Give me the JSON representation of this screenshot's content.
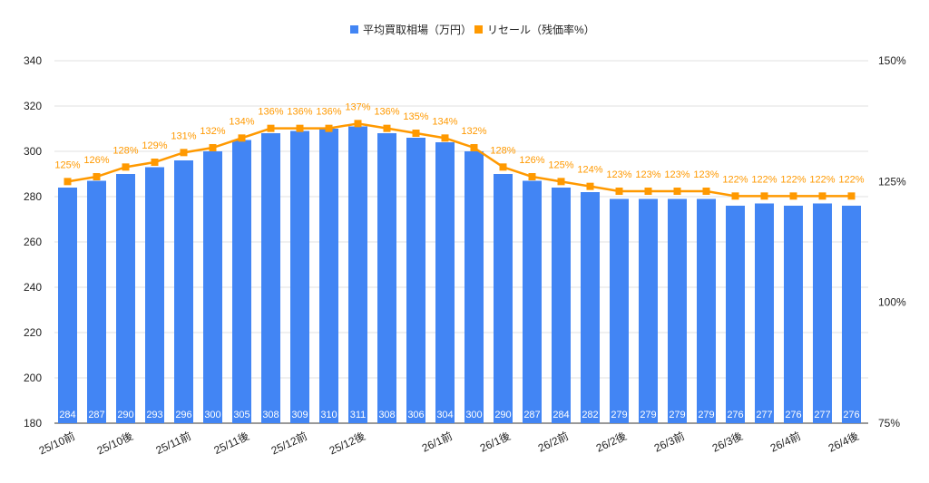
{
  "chart_data": {
    "type": "bar+line",
    "title": "",
    "legend": {
      "placement": "top",
      "items": [
        "平均買取相場（万円）",
        "リセール（残価率%）"
      ]
    },
    "colors": {
      "bars": "#4285F4",
      "line": "#FF9900",
      "grid": "#E0E0E0",
      "axis_text": "#222222"
    },
    "categories": [
      "25/10前",
      "",
      "25/10後",
      "",
      "25/11前",
      "",
      "25/11後",
      "",
      "25/12前",
      "",
      "25/12後",
      "",
      "",
      "26/1前",
      "",
      "26/1後",
      "",
      "26/2前",
      "",
      "26/2後",
      "",
      "26/3前",
      "",
      "26/3後",
      "",
      "26/4前",
      "",
      "26/4後"
    ],
    "series": [
      {
        "name": "平均買取相場（万円）",
        "type": "bar",
        "axis": "left",
        "values": [
          284,
          287,
          290,
          293,
          296,
          300,
          305,
          308,
          309,
          310,
          311,
          308,
          306,
          304,
          300,
          290,
          287,
          284,
          282,
          279,
          279,
          279,
          279,
          276,
          277,
          276,
          277,
          276
        ]
      },
      {
        "name": "リセール（残価率%）",
        "type": "line",
        "axis": "right",
        "values": [
          125,
          126,
          128,
          129,
          131,
          132,
          134,
          136,
          136,
          136,
          137,
          136,
          135,
          134,
          132,
          128,
          126,
          125,
          124,
          123,
          123,
          123,
          123,
          122,
          122,
          122,
          122,
          122
        ]
      }
    ],
    "left_axis": {
      "ylim": [
        180,
        340
      ],
      "ticks": [
        "180",
        "200",
        "220",
        "240",
        "260",
        "280",
        "300",
        "320",
        "340"
      ]
    },
    "right_axis": {
      "ylim": [
        75,
        150
      ],
      "ticks": [
        "75%",
        "100%",
        "125%",
        "150%"
      ]
    },
    "grid": true
  }
}
